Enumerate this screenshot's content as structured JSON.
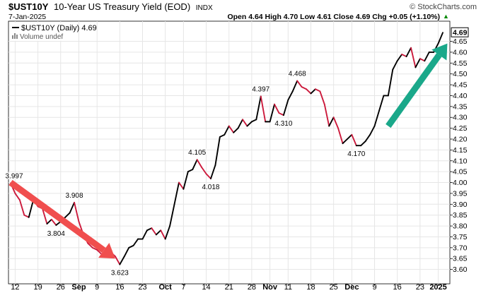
{
  "header": {
    "symbol": "$UST10Y",
    "name": "10-Year US Treasury Yield (EOD)",
    "exchange": "INDX",
    "watermark": "© StockCharts.com",
    "date": "7-Jan-2025",
    "ohlc_line": "Open 4.64  High 4.70  Low 4.61  Close 4.69  Chg +0.05 (+1.10%)",
    "change_arrow": "▲"
  },
  "legend": {
    "series_label": "$UST10Y (Daily) 4.69",
    "volume_label": "Volume undef"
  },
  "colors": {
    "up": "#000000",
    "down": "#cc1a3c",
    "arrow_down": "#f04e4e",
    "arrow_up": "#1aa88a",
    "grid": "#e6e6e6",
    "axis": "#000000",
    "change_positive": "#008800"
  },
  "chart_data": {
    "type": "line",
    "ylim": [
      3.55,
      4.72
    ],
    "y_ticks": [
      3.6,
      3.65,
      3.7,
      3.75,
      3.8,
      3.85,
      3.9,
      3.95,
      4.0,
      4.05,
      4.1,
      4.15,
      4.2,
      4.25,
      4.3,
      4.35,
      4.4,
      4.45,
      4.5,
      4.55,
      4.6,
      4.65
    ],
    "y_tick_labels": [
      "3.60",
      "3.65",
      "3.70",
      "3.75",
      "3.80",
      "3.85",
      "3.90",
      "3.95",
      "4.00",
      "4.05",
      "4.10",
      "4.15",
      "4.20",
      "4.25",
      "4.30",
      "4.35",
      "4.40",
      "4.45",
      "4.50",
      "4.55",
      "4.60",
      "4.65"
    ],
    "last_value_label": "4.69",
    "x_labels": [
      {
        "i": 1,
        "label": "12"
      },
      {
        "i": 6,
        "label": "19"
      },
      {
        "i": 11,
        "label": "26"
      },
      {
        "i": 15,
        "label": "Sep",
        "bold": true
      },
      {
        "i": 19,
        "label": "9"
      },
      {
        "i": 24,
        "label": "16"
      },
      {
        "i": 29,
        "label": "23"
      },
      {
        "i": 34,
        "label": "Oct",
        "bold": true
      },
      {
        "i": 38,
        "label": "7"
      },
      {
        "i": 43,
        "label": "14"
      },
      {
        "i": 48,
        "label": "21"
      },
      {
        "i": 53,
        "label": "28"
      },
      {
        "i": 57,
        "label": "Nov",
        "bold": true
      },
      {
        "i": 61,
        "label": "11"
      },
      {
        "i": 66,
        "label": "18"
      },
      {
        "i": 71,
        "label": "25"
      },
      {
        "i": 75,
        "label": "Dec",
        "bold": true
      },
      {
        "i": 80,
        "label": "9"
      },
      {
        "i": 85,
        "label": "16"
      },
      {
        "i": 90,
        "label": "23"
      },
      {
        "i": 94,
        "label": "2025",
        "bold": true
      }
    ],
    "series": [
      {
        "values": [
          3.997,
          3.95,
          3.92,
          3.85,
          3.84,
          3.92,
          3.89,
          3.88,
          3.81,
          3.83,
          3.804,
          3.82,
          3.84,
          3.86,
          3.908,
          3.82,
          3.76,
          3.72,
          3.7,
          3.69,
          3.67,
          3.66,
          3.68,
          3.66,
          3.623,
          3.66,
          3.7,
          3.71,
          3.74,
          3.74,
          3.78,
          3.79,
          3.76,
          3.78,
          3.74,
          3.8,
          3.9,
          4.0,
          3.97,
          4.05,
          4.06,
          4.105,
          4.07,
          4.04,
          4.018,
          4.08,
          4.21,
          4.22,
          4.26,
          4.23,
          4.25,
          4.29,
          4.26,
          4.28,
          4.29,
          4.397,
          4.28,
          4.28,
          4.36,
          4.32,
          4.31,
          4.38,
          4.42,
          4.468,
          4.44,
          4.43,
          4.41,
          4.43,
          4.42,
          4.36,
          4.26,
          4.3,
          4.25,
          4.18,
          4.2,
          4.22,
          4.17,
          4.17,
          4.19,
          4.22,
          4.26,
          4.33,
          4.4,
          4.4,
          4.52,
          4.56,
          4.59,
          4.58,
          4.62,
          4.53,
          4.57,
          4.56,
          4.6,
          4.6,
          4.64,
          4.69
        ]
      }
    ],
    "annotations": [
      {
        "i": 0,
        "text": "3.997",
        "pos": "above"
      },
      {
        "i": 10,
        "text": "3.804",
        "pos": "below"
      },
      {
        "i": 14,
        "text": "3.908",
        "pos": "above"
      },
      {
        "i": 24,
        "text": "3.623",
        "pos": "below"
      },
      {
        "i": 41,
        "text": "4.105",
        "pos": "above"
      },
      {
        "i": 44,
        "text": "4.018",
        "pos": "below"
      },
      {
        "i": 55,
        "text": "4.397",
        "pos": "above"
      },
      {
        "i": 60,
        "text": "4.310",
        "pos": "below"
      },
      {
        "i": 63,
        "text": "4.468",
        "pos": "above"
      },
      {
        "i": 76,
        "text": "4.170",
        "pos": "below"
      }
    ],
    "trend_arrows": [
      {
        "from": [
          0,
          4.0
        ],
        "to": [
          23,
          3.65
        ],
        "color": "#f04e4e"
      },
      {
        "from": [
          83,
          4.26
        ],
        "to": [
          96,
          4.64
        ],
        "color": "#1aa88a"
      }
    ]
  }
}
